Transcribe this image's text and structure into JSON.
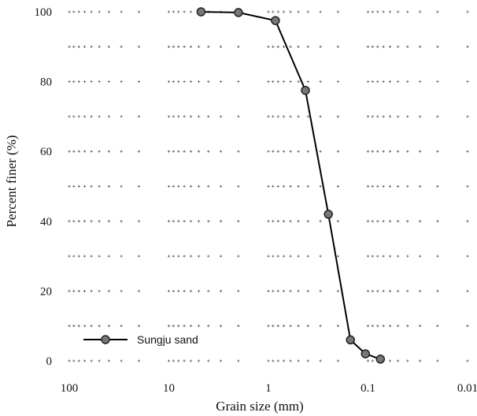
{
  "chart_data": {
    "type": "line",
    "title": "",
    "xlabel": "Grain size (mm)",
    "ylabel": "Percent finer (%)",
    "x_scale": "log",
    "x_reversed": true,
    "xlim": [
      100,
      0.01
    ],
    "ylim": [
      0,
      100
    ],
    "x_ticks": [
      100,
      10,
      1,
      0.1,
      0.01
    ],
    "x_tick_labels": [
      "100",
      "10",
      "1",
      "0.1",
      "0.01"
    ],
    "y_ticks": [
      0,
      20,
      40,
      60,
      80,
      100
    ],
    "y_tick_labels": [
      "0",
      "20",
      "40",
      "60",
      "80",
      "100"
    ],
    "grid": "dotted minor grid",
    "legend_position": "bottom-left",
    "series": [
      {
        "name": "Sungju sand",
        "color": "#000000",
        "marker": "circle",
        "marker_fill": "#777777",
        "x": [
          4.75,
          2.0,
          0.85,
          0.425,
          0.25,
          0.15,
          0.106,
          0.075
        ],
        "y": [
          100,
          99.8,
          97.5,
          77.5,
          42,
          6,
          2,
          0.5
        ]
      }
    ]
  }
}
